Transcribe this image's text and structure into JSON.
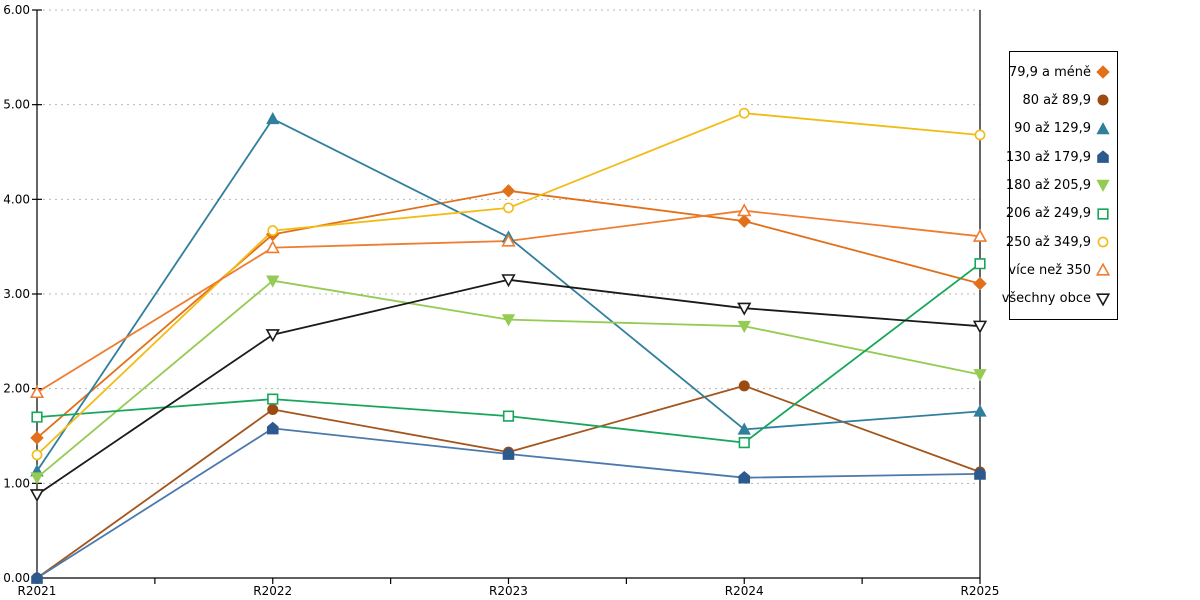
{
  "chart_data": {
    "type": "line",
    "x": [
      "R2021",
      "R2022",
      "R2023",
      "R2024",
      "R2025"
    ],
    "series": [
      {
        "name": "79,9 a méně",
        "marker": "diamond",
        "filled": true,
        "color": "#E2701A",
        "values": [
          1.48,
          3.63,
          4.09,
          3.77,
          3.11
        ]
      },
      {
        "name": "80 až 89,9",
        "marker": "circle",
        "filled": true,
        "color": "#9C4A0F",
        "line_color": "#A3551C",
        "values": [
          0.0,
          1.78,
          1.33,
          2.03,
          1.12
        ]
      },
      {
        "name": "90 až 129,9",
        "marker": "triangle-up",
        "filled": true,
        "color": "#2F7F9D",
        "values": [
          1.13,
          4.85,
          3.6,
          1.57,
          1.76
        ]
      },
      {
        "name": "130 až 179,9",
        "marker": "pentagon",
        "filled": true,
        "color": "#2D5A8E",
        "line_color": "#4C79AC",
        "values": [
          0.0,
          1.58,
          1.31,
          1.06,
          1.1
        ]
      },
      {
        "name": "180 až 205,9",
        "marker": "triangle-down",
        "filled": true,
        "color": "#94CB53",
        "values": [
          1.06,
          3.14,
          2.73,
          2.66,
          2.15
        ]
      },
      {
        "name": "206 až 249,9",
        "marker": "square",
        "filled": false,
        "color": "#17A65B",
        "values": [
          1.7,
          1.89,
          1.71,
          1.43,
          3.32
        ]
      },
      {
        "name": "250 až 349,9",
        "marker": "circle",
        "filled": false,
        "color": "#F2BC16",
        "values": [
          1.3,
          3.67,
          3.91,
          4.91,
          4.68
        ]
      },
      {
        "name": "více než 350",
        "marker": "triangle-up",
        "filled": false,
        "color": "#EE7D31",
        "values": [
          1.96,
          3.49,
          3.56,
          3.88,
          3.61
        ]
      },
      {
        "name": "všechny obce",
        "marker": "triangle-down",
        "filled": false,
        "color": "#1A1A1A",
        "values": [
          0.88,
          2.57,
          3.15,
          2.85,
          2.66
        ]
      }
    ],
    "title": "",
    "xlabel": "",
    "ylabel": "",
    "ylim": [
      0,
      6
    ],
    "ytick_labels": [
      "0.00",
      "1.00",
      "2.00",
      "3.00",
      "4.00",
      "5.00",
      "6.00"
    ],
    "grid": "horizontal-dashed",
    "legend_position": "right"
  },
  "colors": {
    "background": "#FFFFFF",
    "axis": "#000000",
    "gridline": "#B8B8B8",
    "legend_border": "#000000",
    "tick_label": "#000000"
  },
  "axes": {
    "y_tick_font_px": 12,
    "x_tick_font_px": 12
  }
}
